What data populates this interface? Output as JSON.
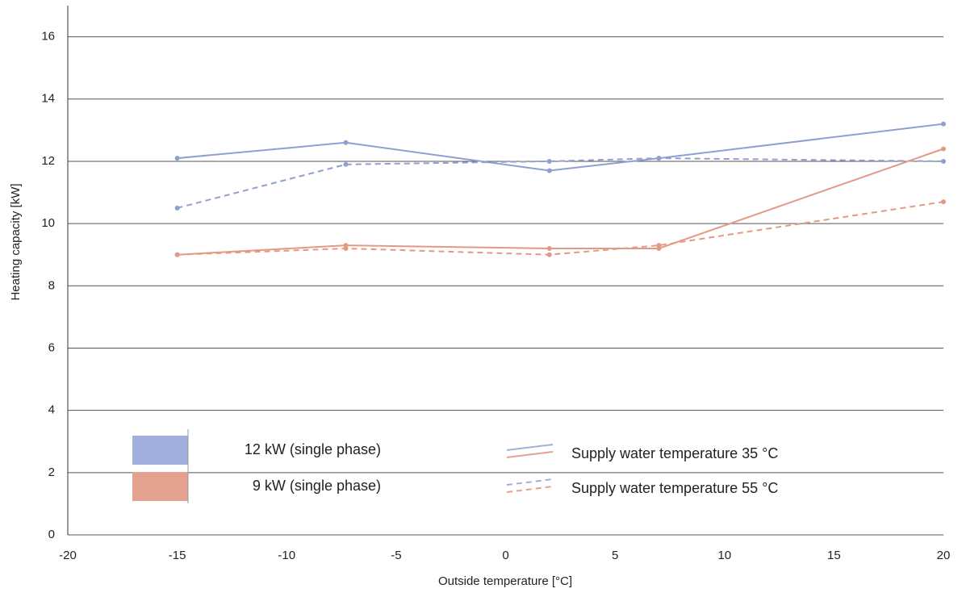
{
  "chart_data": {
    "type": "line",
    "x_label": "Outside temperature [°C]",
    "y_label": "Heating capacity [kW]",
    "x": [
      -15,
      -7.3,
      2,
      7,
      20
    ],
    "series": [
      {
        "color": "#8f9fd2",
        "dashed": false,
        "values": [
          12.1,
          12.6,
          11.7,
          12.1,
          13.2
        ]
      },
      {
        "color": "#8f9fd2",
        "dashed": true,
        "values": [
          10.5,
          11.9,
          12.0,
          12.1,
          12.0
        ]
      },
      {
        "color": "#e39a84",
        "dashed": false,
        "values": [
          9.0,
          9.3,
          9.2,
          9.2,
          12.4
        ]
      },
      {
        "color": "#e39a84",
        "dashed": true,
        "values": [
          9.0,
          9.2,
          9.0,
          9.3,
          10.7
        ]
      }
    ],
    "legend": {
      "models": [
        {
          "name": "12 kW (single phase)",
          "color": "#a2afdc"
        },
        {
          "name": "9 kW (single phase)",
          "color": "#e4a28e"
        }
      ],
      "supply_temps": [
        {
          "name": "Supply water temperature 35 °C",
          "dashed": false
        },
        {
          "name": "Supply water temperature 55 °C",
          "dashed": true
        }
      ]
    },
    "xlim": [
      -20,
      20
    ],
    "xticks": [
      -20,
      -15,
      -10,
      -5,
      0,
      5,
      10,
      15,
      20
    ],
    "ylim": [
      0,
      17
    ],
    "yticks": [
      0,
      2,
      4,
      6,
      8,
      10,
      12,
      14,
      16
    ],
    "grid": true,
    "markers": true
  }
}
